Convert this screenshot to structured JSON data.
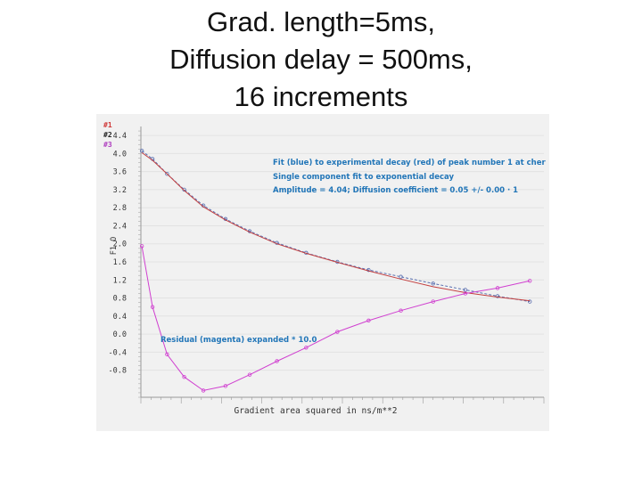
{
  "slide": {
    "title_lines": [
      "Grad. length=5ms,",
      "Diffusion delay = 500ms,",
      "16 increments"
    ]
  },
  "chart_data": {
    "type": "line",
    "ylabel": "F1 O",
    "xlabel": "Gradient area squared in ns/m**2",
    "ylim": [
      -1.4,
      4.6
    ],
    "y_ticks": [
      "4.4",
      "4.0",
      "3.6",
      "3.2",
      "2.8",
      "2.4",
      "2.0",
      "1.6",
      "1.2",
      "0.8",
      "0.4",
      "0.0",
      "-0.4",
      "-0.8"
    ],
    "y_tick_values": [
      4.4,
      4.0,
      3.6,
      3.2,
      2.8,
      2.4,
      2.0,
      1.6,
      1.2,
      0.8,
      0.4,
      0.0,
      -0.4,
      -0.8
    ],
    "grid": true,
    "peak_labels": [
      {
        "text": "#1",
        "color": "#d03a3a"
      },
      {
        "text": "#2",
        "color": "#222222"
      },
      {
        "text": "#3",
        "color": "#b040c0"
      }
    ],
    "annotations": [
      "Fit (blue) to experimental decay (red) of peak number 1 at cher",
      "Single component fit to  exponential decay",
      "Amplitude =    4.04;  Diffusion coefficient =  0.05 +/-  0.00 · 1",
      "Residual (magenta) expanded * 10.0"
    ],
    "series": [
      {
        "name": "Fit (blue)",
        "color": "#5a6fb0",
        "x": [
          0.05,
          0.58,
          1.3,
          2.15,
          3.1,
          4.2,
          5.4,
          6.75,
          8.2,
          9.75,
          11.3,
          12.9,
          14.5,
          16.1,
          17.7,
          19.3
        ],
        "values": [
          4.06,
          3.88,
          3.55,
          3.2,
          2.85,
          2.55,
          2.28,
          2.02,
          1.8,
          1.6,
          1.42,
          1.27,
          1.12,
          0.98,
          0.84,
          0.72
        ]
      },
      {
        "name": "Experimental (red)",
        "color": "#c44040",
        "x": [
          0.05,
          0.58,
          1.3,
          2.15,
          3.1,
          4.2,
          5.4,
          6.75,
          8.2,
          9.75,
          11.3,
          12.9,
          14.5,
          16.1,
          17.7,
          19.3
        ],
        "values": [
          4.02,
          3.85,
          3.55,
          3.18,
          2.82,
          2.53,
          2.26,
          2.0,
          1.79,
          1.59,
          1.4,
          1.22,
          1.05,
          0.92,
          0.82,
          0.74
        ]
      },
      {
        "name": "Residual (magenta)",
        "color": "#d040d0",
        "x": [
          0.05,
          0.58,
          1.3,
          2.15,
          3.1,
          4.2,
          5.4,
          6.75,
          8.2,
          9.75,
          11.3,
          12.9,
          14.5,
          16.1,
          17.7,
          19.3
        ],
        "values": [
          1.95,
          0.6,
          -0.45,
          -0.95,
          -1.25,
          -1.15,
          -0.9,
          -0.6,
          -0.3,
          0.05,
          0.3,
          0.52,
          0.72,
          0.9,
          1.02,
          1.18
        ]
      }
    ],
    "xlim": [
      0,
      20
    ]
  }
}
